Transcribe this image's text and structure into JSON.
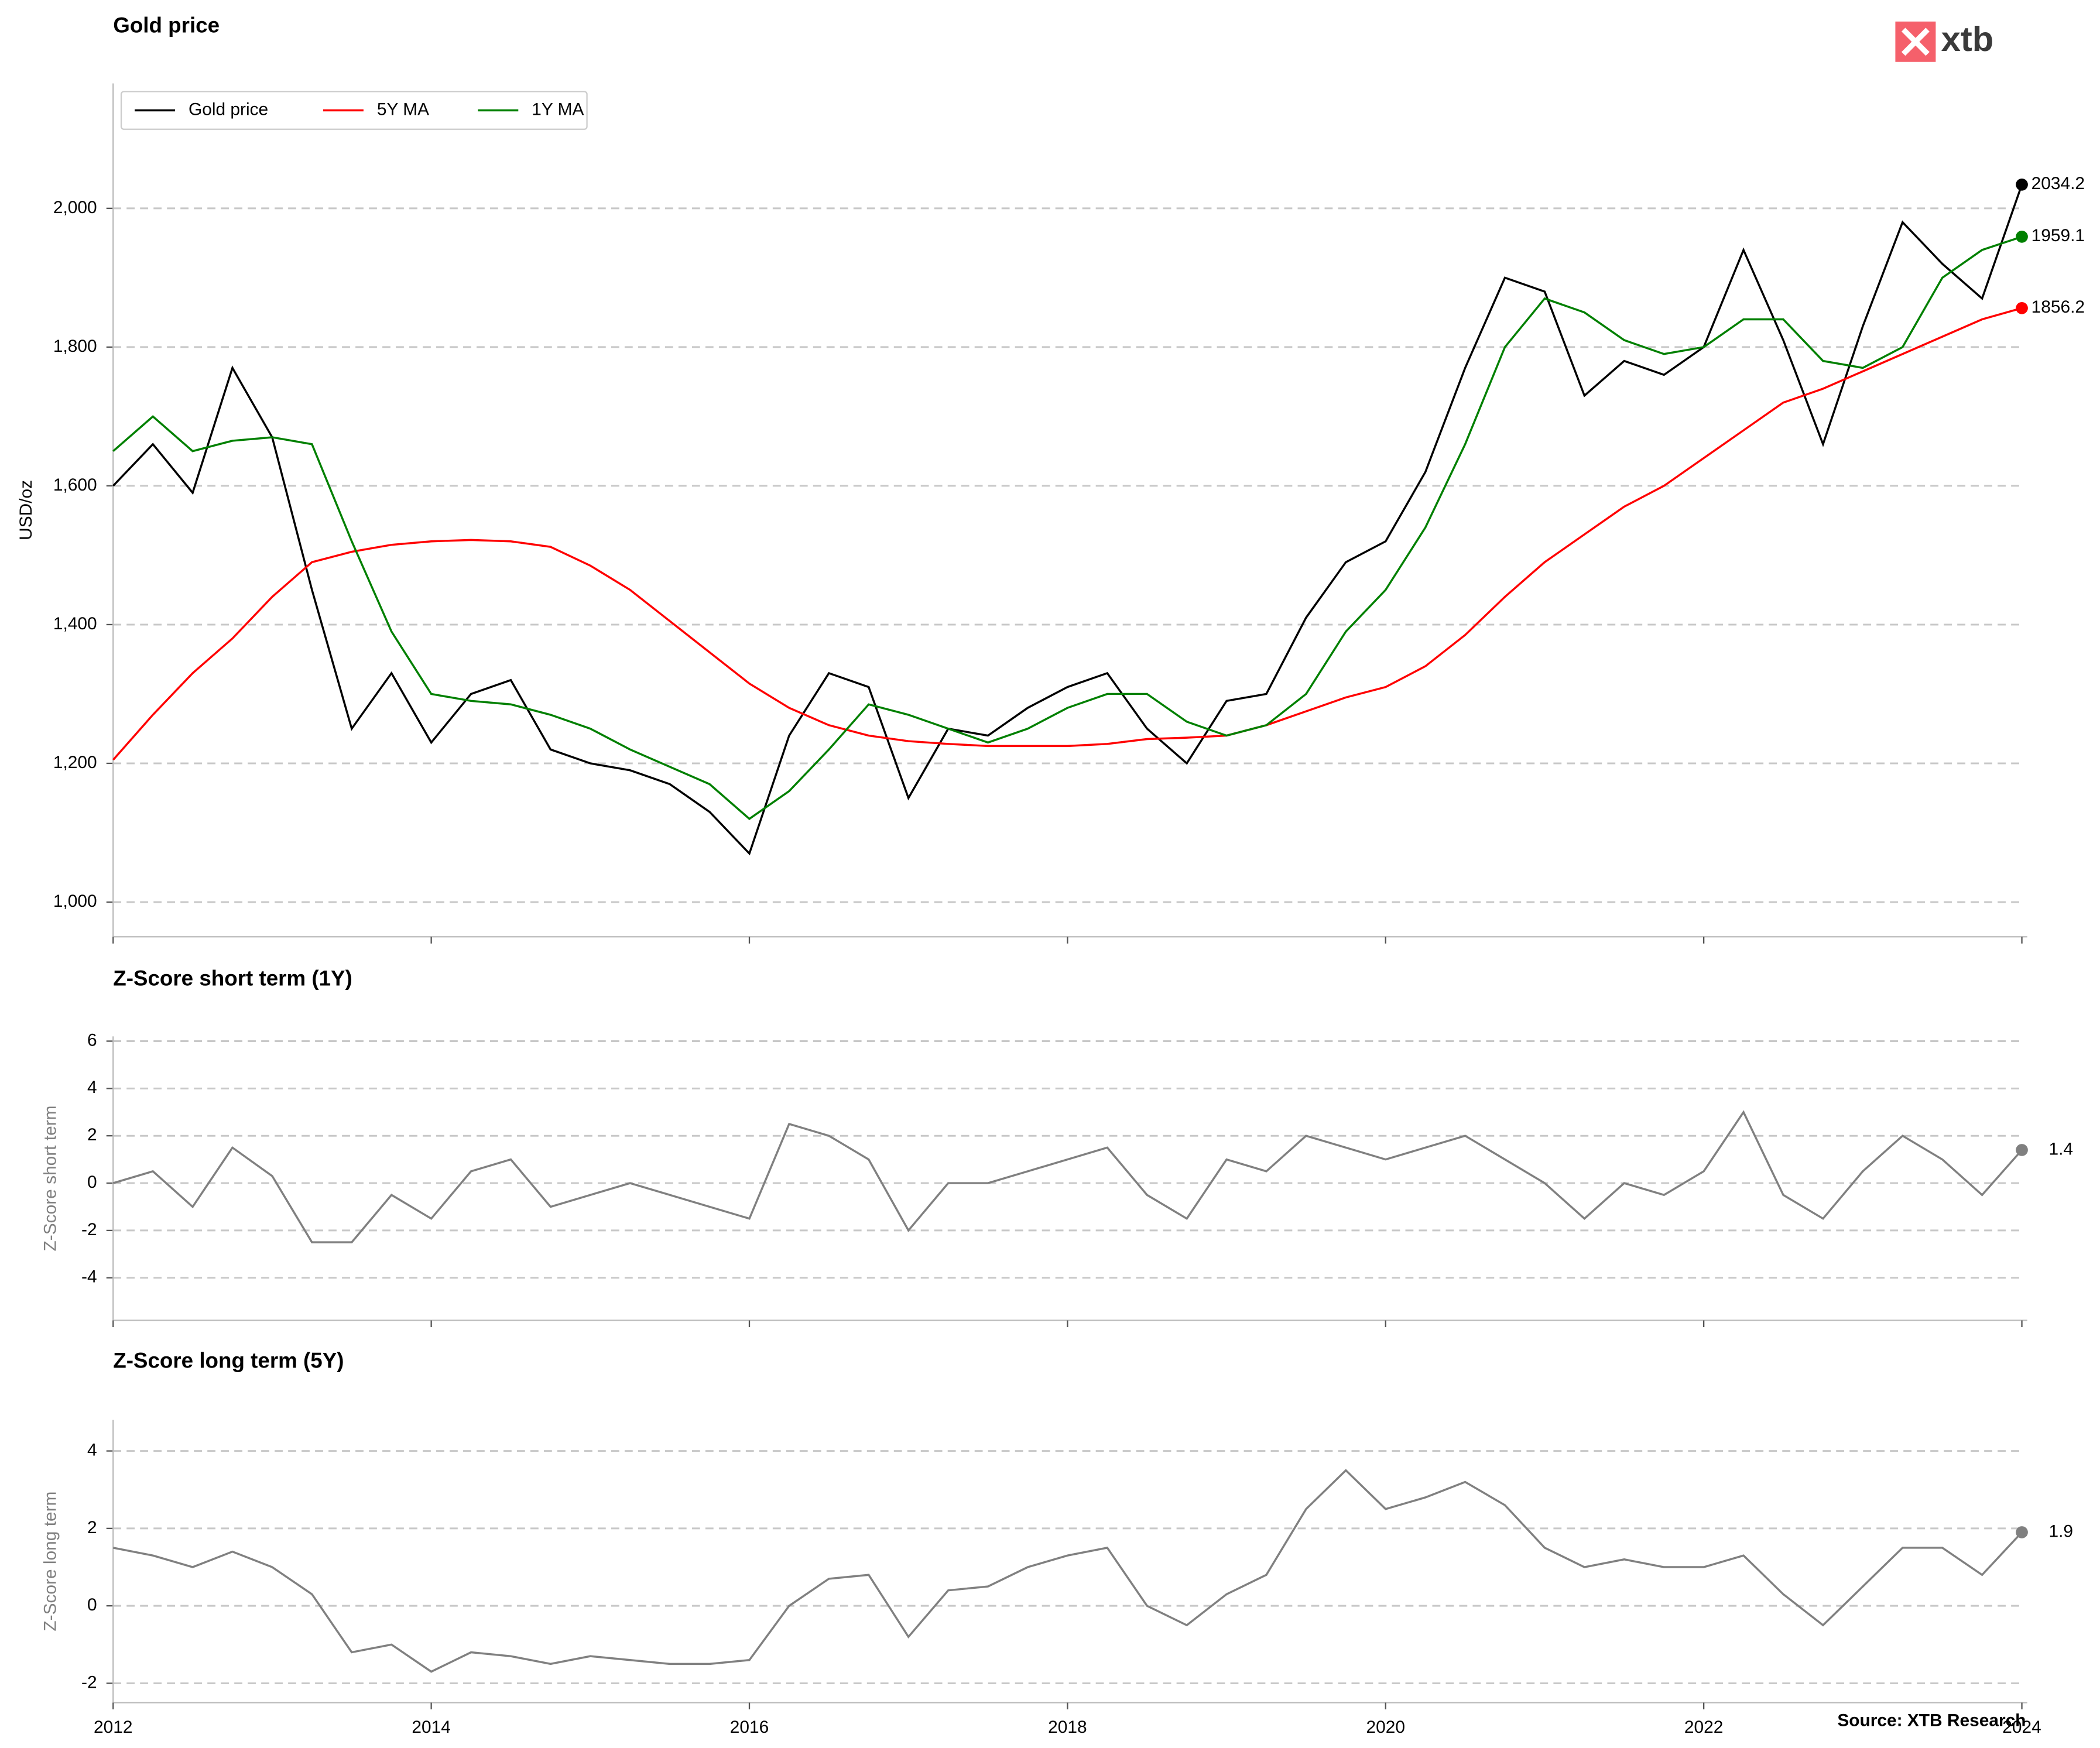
{
  "logo": "xtb",
  "source": "Source: XTB Research",
  "chart_data": [
    {
      "type": "line",
      "title": "Gold price",
      "ylabel": "USD/oz",
      "legend": "upper left",
      "grid": true,
      "xlim": [
        2012,
        2024
      ],
      "ylim": [
        950,
        2180
      ],
      "yticks": [
        {
          "value": 1000,
          "label": "1,000"
        },
        {
          "value": 1200,
          "label": "1,200"
        },
        {
          "value": 1400,
          "label": "1,400"
        },
        {
          "value": 1600,
          "label": "1,600"
        },
        {
          "value": 1800,
          "label": "1,800"
        },
        {
          "value": 2000,
          "label": "2,000"
        }
      ],
      "x": [
        2012,
        2012.25,
        2012.5,
        2012.75,
        2013,
        2013.25,
        2013.5,
        2013.75,
        2014,
        2014.25,
        2014.5,
        2014.75,
        2015,
        2015.25,
        2015.5,
        2015.75,
        2016,
        2016.25,
        2016.5,
        2016.75,
        2017,
        2017.25,
        2017.5,
        2017.75,
        2018,
        2018.25,
        2018.5,
        2018.75,
        2019,
        2019.25,
        2019.5,
        2019.75,
        2020,
        2020.25,
        2020.5,
        2020.75,
        2021,
        2021.25,
        2021.5,
        2021.75,
        2022,
        2022.25,
        2022.5,
        2022.75,
        2023,
        2023.25,
        2023.5,
        2023.75,
        2024
      ],
      "series": [
        {
          "name": "Gold price",
          "color": "#000000",
          "values": [
            1600,
            1660,
            1590,
            1770,
            1670,
            1450,
            1250,
            1330,
            1230,
            1300,
            1320,
            1220,
            1200,
            1190,
            1170,
            1130,
            1070,
            1240,
            1330,
            1310,
            1150,
            1250,
            1240,
            1280,
            1310,
            1330,
            1250,
            1200,
            1290,
            1300,
            1410,
            1490,
            1520,
            1620,
            1770,
            1900,
            1880,
            1730,
            1780,
            1760,
            1800,
            1940,
            1810,
            1660,
            1830,
            1980,
            1920,
            1870,
            2034.2
          ]
        },
        {
          "name": "5Y MA",
          "color": "#ff0000",
          "values": [
            1205,
            1270,
            1330,
            1380,
            1440,
            1490,
            1505,
            1515,
            1520,
            1522,
            1520,
            1512,
            1485,
            1450,
            1405,
            1360,
            1315,
            1280,
            1255,
            1240,
            1232,
            1228,
            1225,
            1225,
            1225,
            1228,
            1235,
            1237,
            1240,
            1255,
            1275,
            1295,
            1310,
            1340,
            1385,
            1440,
            1490,
            1530,
            1570,
            1600,
            1640,
            1680,
            1720,
            1740,
            1765,
            1790,
            1815,
            1840,
            1856.2
          ]
        },
        {
          "name": "1Y MA",
          "color": "#008000",
          "values": [
            1650,
            1700,
            1650,
            1665,
            1670,
            1660,
            1520,
            1390,
            1300,
            1290,
            1285,
            1270,
            1250,
            1220,
            1195,
            1170,
            1120,
            1160,
            1220,
            1285,
            1270,
            1250,
            1230,
            1250,
            1280,
            1300,
            1300,
            1260,
            1240,
            1255,
            1300,
            1390,
            1450,
            1540,
            1660,
            1800,
            1870,
            1850,
            1810,
            1790,
            1800,
            1840,
            1840,
            1780,
            1770,
            1800,
            1900,
            1940,
            1959.1
          ]
        }
      ]
    },
    {
      "type": "line",
      "title": "Z-Score short term (1Y)",
      "ylabel": "Z-Score short term",
      "grid": true,
      "xlim": [
        2012,
        2024
      ],
      "ylim": [
        -5.8,
        6.2
      ],
      "yticks": [
        -4,
        -2,
        0,
        2,
        4,
        6
      ],
      "x": [
        2012,
        2012.25,
        2012.5,
        2012.75,
        2013,
        2013.25,
        2013.5,
        2013.75,
        2014,
        2014.25,
        2014.5,
        2014.75,
        2015,
        2015.25,
        2015.5,
        2015.75,
        2016,
        2016.25,
        2016.5,
        2016.75,
        2017,
        2017.25,
        2017.5,
        2017.75,
        2018,
        2018.25,
        2018.5,
        2018.75,
        2019,
        2019.25,
        2019.5,
        2019.75,
        2020,
        2020.25,
        2020.5,
        2020.75,
        2021,
        2021.25,
        2021.5,
        2021.75,
        2022,
        2022.25,
        2022.5,
        2022.75,
        2023,
        2023.25,
        2023.5,
        2023.75,
        2024
      ],
      "series": [
        {
          "name": "Z-Score short term",
          "color": "#808080",
          "values": [
            0,
            0.5,
            -1,
            1.5,
            0.3,
            -2.5,
            -2.5,
            -0.5,
            -1.5,
            0.5,
            1,
            -1,
            -0.5,
            0,
            -0.5,
            -1,
            -1.5,
            2.5,
            2,
            1,
            -2,
            0,
            0,
            0.5,
            1,
            1.5,
            -0.5,
            -1.5,
            1,
            0.5,
            2,
            1.5,
            1,
            1.5,
            2,
            1,
            0,
            -1.5,
            0,
            -0.5,
            0.5,
            3,
            -0.5,
            -1.5,
            0.5,
            2,
            1,
            -0.5,
            1.4
          ]
        }
      ]
    },
    {
      "type": "line",
      "title": "Z-Score long term (5Y)",
      "ylabel": "Z-Score long term",
      "grid": true,
      "xlim": [
        2012,
        2024
      ],
      "ylim": [
        -2.5,
        4.8
      ],
      "yticks": [
        -2,
        0,
        2,
        4
      ],
      "xticks": [
        2012,
        2014,
        2016,
        2018,
        2020,
        2022,
        2024
      ],
      "x": [
        2012,
        2012.25,
        2012.5,
        2012.75,
        2013,
        2013.25,
        2013.5,
        2013.75,
        2014,
        2014.25,
        2014.5,
        2014.75,
        2015,
        2015.25,
        2015.5,
        2015.75,
        2016,
        2016.25,
        2016.5,
        2016.75,
        2017,
        2017.25,
        2017.5,
        2017.75,
        2018,
        2018.25,
        2018.5,
        2018.75,
        2019,
        2019.25,
        2019.5,
        2019.75,
        2020,
        2020.25,
        2020.5,
        2020.75,
        2021,
        2021.25,
        2021.5,
        2021.75,
        2022,
        2022.25,
        2022.5,
        2022.75,
        2023,
        2023.25,
        2023.5,
        2023.75,
        2024
      ],
      "series": [
        {
          "name": "Z-Score long term",
          "color": "#808080",
          "values": [
            1.5,
            1.3,
            1,
            1.4,
            1,
            0.3,
            -1.2,
            -1,
            -1.7,
            -1.2,
            -1.3,
            -1.5,
            -1.3,
            -1.4,
            -1.5,
            -1.5,
            -1.4,
            0,
            0.7,
            0.8,
            -0.8,
            0.4,
            0.5,
            1,
            1.3,
            1.5,
            0,
            -0.5,
            0.3,
            0.8,
            2.5,
            3.5,
            2.5,
            2.8,
            3.2,
            2.6,
            1.5,
            1,
            1.2,
            1,
            1,
            1.3,
            0.3,
            -0.5,
            0.5,
            1.5,
            1.5,
            0.8,
            1.9
          ]
        }
      ]
    }
  ]
}
